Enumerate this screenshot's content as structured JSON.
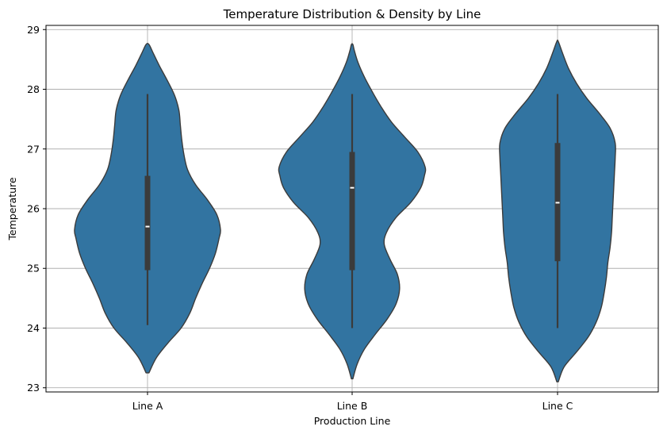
{
  "chart_data": {
    "type": "violin",
    "title": "Temperature Distribution & Density by Line",
    "xlabel": "Production Line",
    "ylabel": "Temperature",
    "ylim": [
      22.93,
      29.07
    ],
    "yticks": [
      "23",
      "24",
      "25",
      "26",
      "27",
      "28",
      "29"
    ],
    "grid": true,
    "colors": {
      "fill": "#3274a1",
      "edge": "#3b3b3b",
      "box": "#3b3b3b",
      "median": "#ffffff",
      "grid": "#b0b0b0"
    },
    "categories": [
      "Line A",
      "Line B",
      "Line C"
    ],
    "violins": [
      {
        "name": "Line A",
        "min": 24.05,
        "q1": 24.97,
        "median": 25.7,
        "q3": 26.55,
        "max": 27.92,
        "density": [
          [
            23.25,
            0.02
          ],
          [
            23.5,
            0.12
          ],
          [
            23.75,
            0.28
          ],
          [
            24.0,
            0.46
          ],
          [
            24.25,
            0.58
          ],
          [
            24.5,
            0.66
          ],
          [
            24.75,
            0.75
          ],
          [
            25.0,
            0.85
          ],
          [
            25.25,
            0.93
          ],
          [
            25.5,
            0.98
          ],
          [
            25.65,
            1.0
          ],
          [
            25.9,
            0.95
          ],
          [
            26.15,
            0.82
          ],
          [
            26.4,
            0.66
          ],
          [
            26.65,
            0.55
          ],
          [
            26.9,
            0.5
          ],
          [
            27.15,
            0.47
          ],
          [
            27.4,
            0.45
          ],
          [
            27.65,
            0.43
          ],
          [
            27.9,
            0.37
          ],
          [
            28.15,
            0.27
          ],
          [
            28.4,
            0.16
          ],
          [
            28.6,
            0.08
          ],
          [
            28.75,
            0.02
          ]
        ]
      },
      {
        "name": "Line B",
        "min": 24.0,
        "q1": 24.97,
        "median": 26.35,
        "q3": 26.95,
        "max": 27.92,
        "density": [
          [
            23.15,
            0.01
          ],
          [
            23.4,
            0.07
          ],
          [
            23.65,
            0.17
          ],
          [
            23.9,
            0.32
          ],
          [
            24.15,
            0.48
          ],
          [
            24.4,
            0.6
          ],
          [
            24.65,
            0.65
          ],
          [
            24.9,
            0.62
          ],
          [
            25.15,
            0.52
          ],
          [
            25.4,
            0.44
          ],
          [
            25.6,
            0.47
          ],
          [
            25.85,
            0.6
          ],
          [
            26.1,
            0.8
          ],
          [
            26.35,
            0.94
          ],
          [
            26.55,
            0.99
          ],
          [
            26.7,
            1.0
          ],
          [
            26.95,
            0.9
          ],
          [
            27.2,
            0.72
          ],
          [
            27.45,
            0.54
          ],
          [
            27.7,
            0.4
          ],
          [
            27.95,
            0.28
          ],
          [
            28.2,
            0.17
          ],
          [
            28.45,
            0.08
          ],
          [
            28.65,
            0.03
          ],
          [
            28.75,
            0.01
          ]
        ]
      },
      {
        "name": "Line C",
        "min": 24.0,
        "q1": 25.12,
        "median": 26.1,
        "q3": 27.1,
        "max": 27.92,
        "density": [
          [
            23.1,
            0.01
          ],
          [
            23.35,
            0.09
          ],
          [
            23.6,
            0.26
          ],
          [
            23.85,
            0.42
          ],
          [
            24.1,
            0.53
          ],
          [
            24.35,
            0.6
          ],
          [
            24.6,
            0.64
          ],
          [
            24.85,
            0.67
          ],
          [
            25.1,
            0.69
          ],
          [
            25.35,
            0.72
          ],
          [
            25.6,
            0.74
          ],
          [
            25.85,
            0.75
          ],
          [
            26.1,
            0.76
          ],
          [
            26.35,
            0.77
          ],
          [
            26.6,
            0.78
          ],
          [
            26.85,
            0.79
          ],
          [
            27.1,
            0.79
          ],
          [
            27.35,
            0.72
          ],
          [
            27.6,
            0.57
          ],
          [
            27.85,
            0.4
          ],
          [
            28.1,
            0.26
          ],
          [
            28.35,
            0.15
          ],
          [
            28.6,
            0.07
          ],
          [
            28.8,
            0.01
          ]
        ]
      }
    ]
  }
}
